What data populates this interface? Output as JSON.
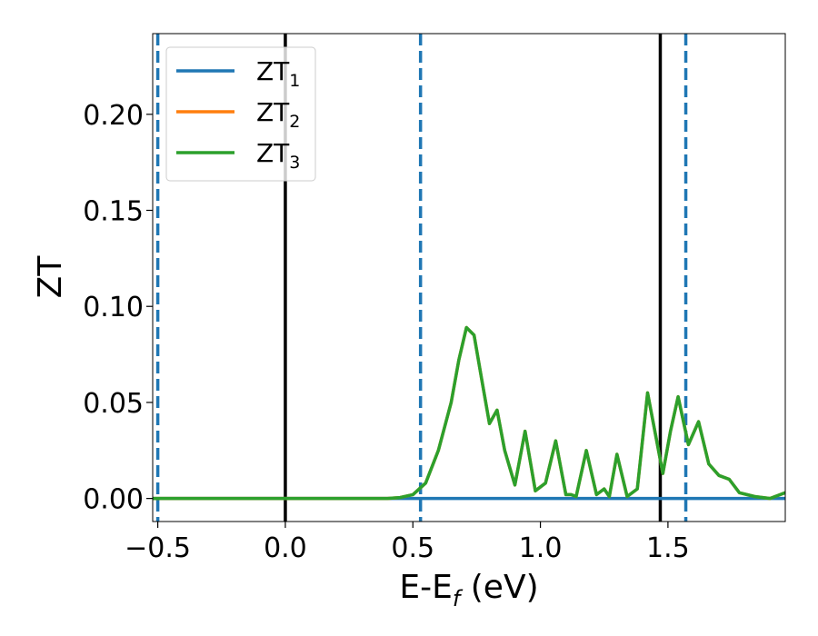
{
  "chart_data": {
    "type": "line",
    "xlabel": "E-E",
    "xlabel_sub": "f",
    "xlabel_unit": " (eV)",
    "ylabel": "ZT",
    "xlim": [
      -0.52,
      1.96
    ],
    "ylim": [
      -0.012,
      0.242
    ],
    "xticks": [
      -0.5,
      0.0,
      0.5,
      1.0,
      1.5
    ],
    "xtick_labels": [
      "−0.5",
      "0.0",
      "0.5",
      "1.0",
      "1.5"
    ],
    "yticks": [
      0.0,
      0.05,
      0.1,
      0.15,
      0.2
    ],
    "ytick_labels": [
      "0.00",
      "0.05",
      "0.10",
      "0.15",
      "0.20"
    ],
    "grid": false,
    "legend_position": "top-left",
    "series": [
      {
        "name": "ZT",
        "name_sub": "1",
        "color": "#1f77b4",
        "x": [
          -0.52,
          1.96
        ],
        "y": [
          0.0,
          0.0
        ]
      },
      {
        "name": "ZT",
        "name_sub": "2",
        "color": "#ff7f0e",
        "x": [
          -0.52,
          0.4,
          0.45,
          0.5,
          0.55,
          0.6,
          0.65,
          0.68,
          0.71,
          0.74,
          0.77,
          0.8,
          0.83,
          0.86,
          0.9,
          0.94,
          0.98,
          1.02,
          1.06,
          1.1,
          1.12,
          1.14,
          1.18,
          1.22,
          1.25,
          1.27,
          1.3,
          1.34,
          1.38,
          1.42,
          1.45,
          1.48,
          1.51,
          1.54,
          1.58,
          1.62,
          1.66,
          1.7,
          1.74,
          1.78,
          1.84,
          1.9,
          1.96
        ],
        "y": [
          0.0,
          0.0,
          0.0005,
          0.002,
          0.008,
          0.025,
          0.05,
          0.072,
          0.089,
          0.085,
          0.062,
          0.039,
          0.046,
          0.025,
          0.007,
          0.035,
          0.004,
          0.008,
          0.03,
          0.002,
          0.002,
          0.001,
          0.025,
          0.002,
          0.005,
          0.001,
          0.023,
          0.001,
          0.005,
          0.055,
          0.034,
          0.013,
          0.035,
          0.053,
          0.028,
          0.04,
          0.018,
          0.012,
          0.01,
          0.003,
          0.001,
          0.0,
          0.003
        ]
      },
      {
        "name": "ZT",
        "name_sub": "3",
        "color": "#2ca02c",
        "x": [
          -0.52,
          0.4,
          0.45,
          0.5,
          0.55,
          0.6,
          0.65,
          0.68,
          0.71,
          0.74,
          0.77,
          0.8,
          0.83,
          0.86,
          0.9,
          0.94,
          0.98,
          1.02,
          1.06,
          1.1,
          1.12,
          1.14,
          1.18,
          1.22,
          1.25,
          1.27,
          1.3,
          1.34,
          1.38,
          1.42,
          1.45,
          1.48,
          1.51,
          1.54,
          1.58,
          1.62,
          1.66,
          1.7,
          1.74,
          1.78,
          1.84,
          1.9,
          1.96
        ],
        "y": [
          0.0,
          0.0,
          0.0005,
          0.002,
          0.008,
          0.025,
          0.05,
          0.072,
          0.089,
          0.085,
          0.062,
          0.039,
          0.046,
          0.025,
          0.007,
          0.035,
          0.004,
          0.008,
          0.03,
          0.002,
          0.002,
          0.001,
          0.025,
          0.002,
          0.005,
          0.001,
          0.023,
          0.001,
          0.005,
          0.055,
          0.034,
          0.013,
          0.035,
          0.053,
          0.028,
          0.04,
          0.018,
          0.012,
          0.01,
          0.003,
          0.001,
          0.0,
          0.003
        ]
      }
    ],
    "vlines": [
      {
        "x": -0.5,
        "color": "#1f77b4",
        "style": "dashed"
      },
      {
        "x": 0.0,
        "color": "#000000",
        "style": "solid"
      },
      {
        "x": 0.53,
        "color": "#1f77b4",
        "style": "dashed"
      },
      {
        "x": 1.47,
        "color": "#000000",
        "style": "solid"
      },
      {
        "x": 1.57,
        "color": "#1f77b4",
        "style": "dashed"
      }
    ]
  }
}
